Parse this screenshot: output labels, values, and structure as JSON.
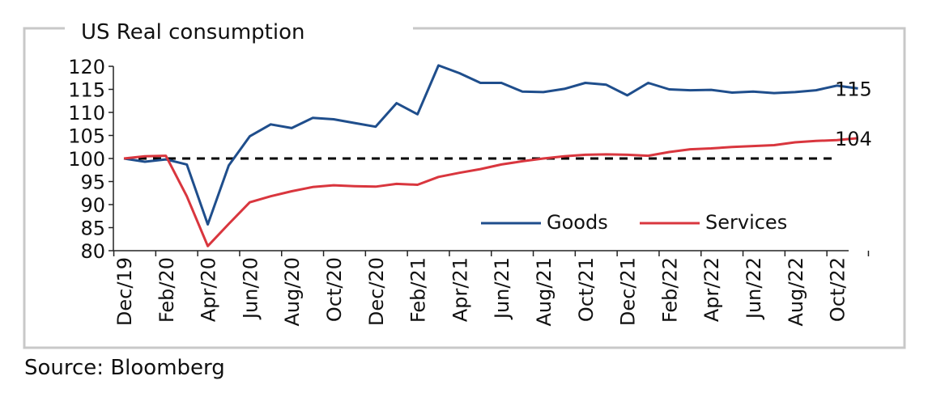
{
  "chart_data": {
    "type": "line",
    "title": "US Real consumption",
    "xlabel": "",
    "ylabel": "",
    "ylim": [
      80,
      120
    ],
    "yticks": [
      80,
      85,
      90,
      95,
      100,
      105,
      110,
      115,
      120
    ],
    "x_labels": [
      "Dec/19",
      "Feb/20",
      "Apr/20",
      "Jun/20",
      "Aug/20",
      "Oct/20",
      "Dec/20",
      "Feb/21",
      "Apr/21",
      "Jun/21",
      "Aug/21",
      "Oct/21",
      "Dec/21",
      "Feb/22",
      "Apr/22",
      "Jun/22",
      "Aug/22",
      "Oct/22"
    ],
    "x_points": [
      "Dec/19",
      "Jan/20",
      "Feb/20",
      "Mar/20",
      "Apr/20",
      "May/20",
      "Jun/20",
      "Jul/20",
      "Aug/20",
      "Sep/20",
      "Oct/20",
      "Nov/20",
      "Dec/20",
      "Jan/21",
      "Feb/21",
      "Mar/21",
      "Apr/21",
      "May/21",
      "Jun/21",
      "Jul/21",
      "Aug/21",
      "Sep/21",
      "Oct/21",
      "Nov/21",
      "Dec/21",
      "Jan/22",
      "Feb/22",
      "Mar/22",
      "Apr/22",
      "May/22",
      "Jun/22",
      "Jul/22",
      "Aug/22",
      "Sep/22",
      "Oct/22",
      "Nov/22"
    ],
    "series": [
      {
        "name": "Goods",
        "color": "#1f4e8c",
        "values": [
          100,
          99.3,
          99.8,
          98.7,
          85.7,
          98.5,
          104.8,
          107.4,
          106.6,
          108.8,
          108.5,
          107.7,
          106.9,
          112.0,
          109.6,
          120.2,
          118.5,
          116.4,
          116.4,
          114.5,
          114.4,
          115.1,
          116.4,
          116.0,
          113.7,
          116.4,
          115.0,
          114.8,
          114.9,
          114.3,
          114.5,
          114.2,
          114.4,
          114.8,
          115.8,
          115.2
        ],
        "end_label": "115"
      },
      {
        "name": "Services",
        "color": "#d9363e",
        "values": [
          100,
          100.5,
          100.6,
          91.8,
          81.0,
          85.8,
          90.5,
          91.8,
          92.9,
          93.8,
          94.2,
          94.0,
          93.9,
          94.5,
          94.3,
          96.0,
          96.9,
          97.7,
          98.7,
          99.4,
          100.0,
          100.5,
          100.8,
          100.9,
          100.8,
          100.6,
          101.4,
          102.0,
          102.2,
          102.5,
          102.7,
          102.9,
          103.5,
          103.8,
          104.0,
          104.4
        ],
        "end_label": "104"
      }
    ],
    "reference_line": {
      "value": 100,
      "style": "dashed",
      "color": "#000000"
    },
    "legend": {
      "position": "bottom-right",
      "layout": "horizontal"
    },
    "grid": false
  },
  "source": "Source: Bloomberg"
}
